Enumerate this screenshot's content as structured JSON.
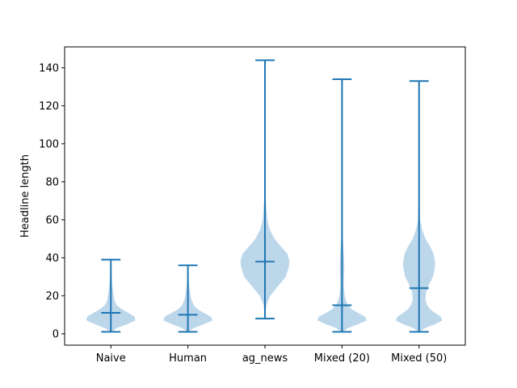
{
  "chart_data": {
    "type": "violin",
    "title": "",
    "xlabel": "",
    "ylabel": "Headline length",
    "ylim": [
      -6,
      151
    ],
    "yticks": [
      0,
      20,
      40,
      60,
      80,
      100,
      120,
      140
    ],
    "categories": [
      "Naive",
      "Human",
      "ag_news",
      "Mixed (20)",
      "Mixed (50)"
    ],
    "colors": {
      "body": "#bcd6ea",
      "lines": "#1f77b4",
      "axes": "#000000"
    },
    "violins": [
      {
        "label": "Naive",
        "min": 1,
        "max": 39,
        "median": 11,
        "profile": [
          [
            1,
            0.02
          ],
          [
            3,
            0.2
          ],
          [
            5,
            0.55
          ],
          [
            7,
            0.85
          ],
          [
            9,
            0.82
          ],
          [
            11,
            0.6
          ],
          [
            13,
            0.38
          ],
          [
            15,
            0.2
          ],
          [
            18,
            0.12
          ],
          [
            22,
            0.08
          ],
          [
            26,
            0.05
          ],
          [
            30,
            0.03
          ],
          [
            35,
            0.015
          ],
          [
            39,
            0.0
          ]
        ]
      },
      {
        "label": "Human",
        "min": 1,
        "max": 36,
        "median": 10,
        "profile": [
          [
            1,
            0.02
          ],
          [
            3,
            0.2
          ],
          [
            5,
            0.55
          ],
          [
            7,
            0.85
          ],
          [
            9,
            0.8
          ],
          [
            11,
            0.55
          ],
          [
            13,
            0.33
          ],
          [
            15,
            0.2
          ],
          [
            18,
            0.12
          ],
          [
            22,
            0.07
          ],
          [
            26,
            0.04
          ],
          [
            30,
            0.025
          ],
          [
            36,
            0.0
          ]
        ]
      },
      {
        "label": "ag_news",
        "min": 8,
        "max": 144,
        "median": 38,
        "profile": [
          [
            8,
            0.0
          ],
          [
            15,
            0.05
          ],
          [
            20,
            0.18
          ],
          [
            25,
            0.45
          ],
          [
            30,
            0.72
          ],
          [
            35,
            0.82
          ],
          [
            38,
            0.85
          ],
          [
            42,
            0.78
          ],
          [
            46,
            0.55
          ],
          [
            50,
            0.33
          ],
          [
            55,
            0.16
          ],
          [
            60,
            0.08
          ],
          [
            70,
            0.03
          ],
          [
            80,
            0.015
          ],
          [
            100,
            0.008
          ],
          [
            120,
            0.004
          ],
          [
            144,
            0.0
          ]
        ]
      },
      {
        "label": "Mixed (20)",
        "min": 1,
        "max": 134,
        "median": 15,
        "profile": [
          [
            1,
            0.02
          ],
          [
            3,
            0.2
          ],
          [
            5,
            0.55
          ],
          [
            7,
            0.85
          ],
          [
            9,
            0.8
          ],
          [
            11,
            0.55
          ],
          [
            13,
            0.33
          ],
          [
            15,
            0.2
          ],
          [
            18,
            0.12
          ],
          [
            22,
            0.08
          ],
          [
            26,
            0.06
          ],
          [
            30,
            0.07
          ],
          [
            35,
            0.08
          ],
          [
            40,
            0.07
          ],
          [
            45,
            0.05
          ],
          [
            50,
            0.03
          ],
          [
            60,
            0.015
          ],
          [
            80,
            0.008
          ],
          [
            100,
            0.004
          ],
          [
            134,
            0.0
          ]
        ]
      },
      {
        "label": "Mixed (50)",
        "min": 1,
        "max": 133,
        "median": 24,
        "profile": [
          [
            1,
            0.02
          ],
          [
            3,
            0.2
          ],
          [
            5,
            0.55
          ],
          [
            7,
            0.8
          ],
          [
            9,
            0.75
          ],
          [
            11,
            0.55
          ],
          [
            13,
            0.38
          ],
          [
            15,
            0.28
          ],
          [
            18,
            0.22
          ],
          [
            22,
            0.24
          ],
          [
            26,
            0.35
          ],
          [
            30,
            0.48
          ],
          [
            35,
            0.55
          ],
          [
            38,
            0.55
          ],
          [
            42,
            0.5
          ],
          [
            46,
            0.38
          ],
          [
            50,
            0.22
          ],
          [
            55,
            0.1
          ],
          [
            60,
            0.04
          ],
          [
            70,
            0.02
          ],
          [
            80,
            0.01
          ],
          [
            100,
            0.005
          ],
          [
            133,
            0.0
          ]
        ]
      }
    ]
  }
}
